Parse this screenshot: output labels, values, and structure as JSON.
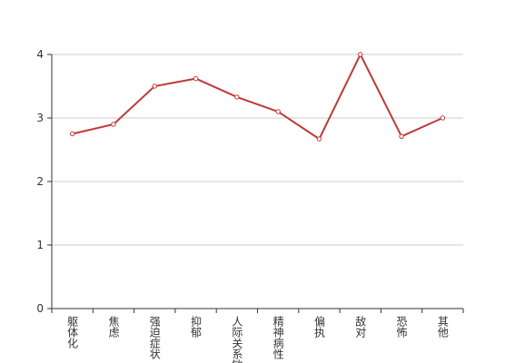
{
  "chart_data": {
    "type": "line",
    "categories": [
      "躯体化",
      "焦虑",
      "强迫症状",
      "抑郁",
      "人际关系敏感",
      "精神病性",
      "偏执",
      "敌对",
      "恐怖",
      "其他"
    ],
    "series": [
      {
        "color": "#c0393a",
        "values": [
          2.75,
          2.9,
          3.5,
          3.62,
          3.33,
          3.1,
          2.67,
          4.0,
          2.71,
          3.0
        ]
      }
    ],
    "ylim": [
      0,
      4
    ],
    "yticks": [
      0,
      1,
      2,
      3,
      4
    ],
    "grid": true
  }
}
